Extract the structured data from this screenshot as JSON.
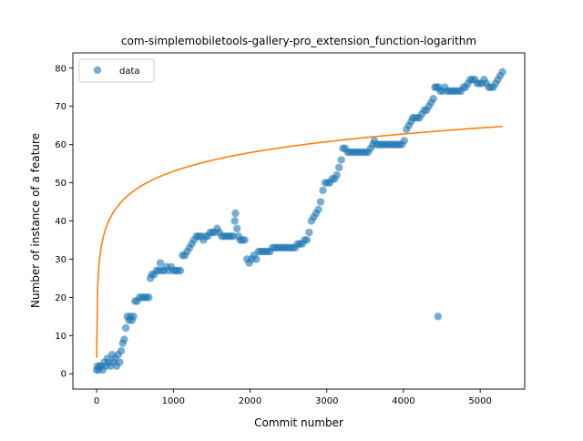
{
  "chart_data": {
    "type": "scatter",
    "title": "com-simplemobiletools-gallery-pro_extension_function-logarithm",
    "xlabel": "Commit number",
    "ylabel": "Number of instance of a feature",
    "xlim": [
      -310,
      5580
    ],
    "ylim": [
      -4,
      84
    ],
    "x_ticks": [
      0,
      1000,
      2000,
      3000,
      4000,
      5000
    ],
    "y_ticks": [
      0,
      10,
      20,
      30,
      40,
      50,
      60,
      70,
      80
    ],
    "legend": {
      "position": "top-left",
      "entries": [
        "data"
      ]
    },
    "colors": {
      "data": "#1f77b4",
      "fit": "#ff7f0e"
    },
    "series": [
      {
        "name": "data",
        "kind": "scatter",
        "points": [
          [
            0,
            1
          ],
          [
            10,
            2
          ],
          [
            25,
            1
          ],
          [
            40,
            2
          ],
          [
            60,
            2
          ],
          [
            80,
            1
          ],
          [
            100,
            3
          ],
          [
            120,
            2
          ],
          [
            140,
            4
          ],
          [
            160,
            3
          ],
          [
            180,
            2
          ],
          [
            200,
            5
          ],
          [
            220,
            3
          ],
          [
            240,
            4
          ],
          [
            260,
            2
          ],
          [
            280,
            5
          ],
          [
            300,
            3
          ],
          [
            320,
            6
          ],
          [
            340,
            8
          ],
          [
            360,
            9
          ],
          [
            380,
            12
          ],
          [
            400,
            15
          ],
          [
            420,
            14
          ],
          [
            440,
            15
          ],
          [
            460,
            14
          ],
          [
            480,
            15
          ],
          [
            500,
            19
          ],
          [
            530,
            19
          ],
          [
            560,
            20
          ],
          [
            590,
            20
          ],
          [
            620,
            20
          ],
          [
            650,
            20
          ],
          [
            680,
            20
          ],
          [
            700,
            25
          ],
          [
            720,
            26
          ],
          [
            750,
            26
          ],
          [
            780,
            27
          ],
          [
            810,
            27
          ],
          [
            830,
            29
          ],
          [
            850,
            27
          ],
          [
            880,
            27
          ],
          [
            910,
            28
          ],
          [
            940,
            27
          ],
          [
            970,
            28
          ],
          [
            1000,
            27
          ],
          [
            1030,
            27
          ],
          [
            1060,
            27
          ],
          [
            1090,
            27
          ],
          [
            1120,
            31
          ],
          [
            1150,
            31
          ],
          [
            1180,
            32
          ],
          [
            1210,
            33
          ],
          [
            1240,
            34
          ],
          [
            1270,
            35
          ],
          [
            1300,
            36
          ],
          [
            1330,
            36
          ],
          [
            1360,
            36
          ],
          [
            1390,
            35
          ],
          [
            1420,
            36
          ],
          [
            1450,
            36
          ],
          [
            1480,
            37
          ],
          [
            1510,
            37
          ],
          [
            1540,
            37
          ],
          [
            1570,
            38
          ],
          [
            1600,
            37
          ],
          [
            1630,
            36
          ],
          [
            1660,
            36
          ],
          [
            1690,
            36
          ],
          [
            1720,
            36
          ],
          [
            1750,
            36
          ],
          [
            1780,
            36
          ],
          [
            1800,
            40
          ],
          [
            1810,
            42
          ],
          [
            1830,
            38
          ],
          [
            1850,
            36
          ],
          [
            1870,
            35
          ],
          [
            1900,
            35
          ],
          [
            1930,
            35
          ],
          [
            1960,
            30
          ],
          [
            1990,
            29
          ],
          [
            2020,
            30
          ],
          [
            2050,
            31
          ],
          [
            2080,
            30
          ],
          [
            2110,
            32
          ],
          [
            2140,
            32
          ],
          [
            2170,
            32
          ],
          [
            2200,
            32
          ],
          [
            2230,
            32
          ],
          [
            2260,
            32
          ],
          [
            2290,
            33
          ],
          [
            2320,
            33
          ],
          [
            2350,
            33
          ],
          [
            2380,
            33
          ],
          [
            2410,
            33
          ],
          [
            2440,
            33
          ],
          [
            2470,
            33
          ],
          [
            2500,
            33
          ],
          [
            2530,
            33
          ],
          [
            2560,
            33
          ],
          [
            2590,
            33
          ],
          [
            2620,
            34
          ],
          [
            2650,
            34
          ],
          [
            2680,
            34
          ],
          [
            2710,
            35
          ],
          [
            2740,
            35
          ],
          [
            2770,
            37
          ],
          [
            2800,
            40
          ],
          [
            2830,
            41
          ],
          [
            2860,
            42
          ],
          [
            2890,
            43
          ],
          [
            2920,
            45
          ],
          [
            2950,
            48
          ],
          [
            2980,
            50
          ],
          [
            3010,
            50
          ],
          [
            3040,
            50
          ],
          [
            3070,
            51
          ],
          [
            3100,
            51
          ],
          [
            3130,
            52
          ],
          [
            3160,
            54
          ],
          [
            3190,
            56
          ],
          [
            3210,
            59
          ],
          [
            3240,
            59
          ],
          [
            3270,
            58
          ],
          [
            3300,
            58
          ],
          [
            3330,
            58
          ],
          [
            3360,
            58
          ],
          [
            3390,
            58
          ],
          [
            3420,
            58
          ],
          [
            3450,
            58
          ],
          [
            3480,
            58
          ],
          [
            3510,
            58
          ],
          [
            3540,
            58
          ],
          [
            3570,
            59
          ],
          [
            3600,
            60
          ],
          [
            3620,
            61
          ],
          [
            3650,
            60
          ],
          [
            3680,
            60
          ],
          [
            3710,
            60
          ],
          [
            3740,
            60
          ],
          [
            3770,
            60
          ],
          [
            3800,
            60
          ],
          [
            3830,
            60
          ],
          [
            3860,
            60
          ],
          [
            3890,
            60
          ],
          [
            3920,
            60
          ],
          [
            3950,
            60
          ],
          [
            3980,
            60
          ],
          [
            4010,
            61
          ],
          [
            4040,
            64
          ],
          [
            4070,
            65
          ],
          [
            4100,
            66
          ],
          [
            4120,
            67
          ],
          [
            4150,
            67
          ],
          [
            4180,
            67
          ],
          [
            4210,
            67
          ],
          [
            4240,
            68
          ],
          [
            4270,
            69
          ],
          [
            4300,
            69
          ],
          [
            4330,
            70
          ],
          [
            4360,
            71
          ],
          [
            4390,
            72
          ],
          [
            4410,
            75
          ],
          [
            4430,
            75
          ],
          [
            4450,
            15
          ],
          [
            4460,
            75
          ],
          [
            4480,
            74
          ],
          [
            4510,
            74
          ],
          [
            4540,
            75
          ],
          [
            4570,
            74
          ],
          [
            4600,
            74
          ],
          [
            4630,
            74
          ],
          [
            4660,
            74
          ],
          [
            4690,
            74
          ],
          [
            4720,
            74
          ],
          [
            4750,
            74
          ],
          [
            4780,
            75
          ],
          [
            4810,
            75
          ],
          [
            4840,
            76
          ],
          [
            4870,
            77
          ],
          [
            4900,
            77
          ],
          [
            4930,
            77
          ],
          [
            4960,
            76
          ],
          [
            4990,
            76
          ],
          [
            5020,
            76
          ],
          [
            5050,
            77
          ],
          [
            5080,
            76
          ],
          [
            5110,
            75
          ],
          [
            5140,
            75
          ],
          [
            5170,
            75
          ],
          [
            5200,
            76
          ],
          [
            5230,
            77
          ],
          [
            5260,
            78
          ],
          [
            5290,
            79
          ]
        ]
      },
      {
        "name": "",
        "kind": "line",
        "model": "logarithm",
        "x_range": [
          0,
          5290
        ],
        "note_params": {
          "a": 4.23,
          "b": 16.25
        }
      }
    ]
  }
}
